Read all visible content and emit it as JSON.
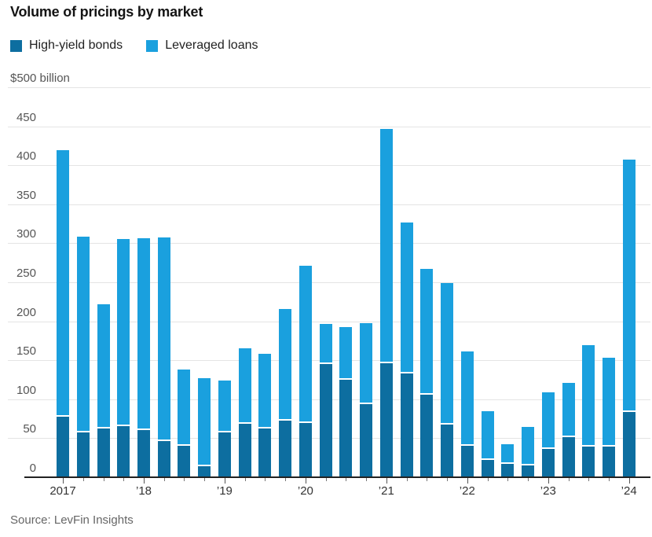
{
  "header": {
    "title": "Volume of pricings by market"
  },
  "footer": {
    "source": "Source: LevFin Insights"
  },
  "chart_data": {
    "type": "bar",
    "stacked": true,
    "title": "Volume of pricings by market",
    "xlabel": "",
    "ylabel": "",
    "y_top_label": "$500 billion",
    "ylim": [
      0,
      500
    ],
    "ytick_step": 50,
    "yticks": [
      0,
      50,
      100,
      150,
      200,
      250,
      300,
      350,
      400,
      450
    ],
    "grid": true,
    "legend_position": "top-left",
    "categories": [
      "2017 Q1",
      "2017 Q2",
      "2017 Q3",
      "2017 Q4",
      "2018 Q1",
      "2018 Q2",
      "2018 Q3",
      "2018 Q4",
      "2019 Q1",
      "2019 Q2",
      "2019 Q3",
      "2019 Q4",
      "2020 Q1",
      "2020 Q2",
      "2020 Q3",
      "2020 Q4",
      "2021 Q1",
      "2021 Q2",
      "2021 Q3",
      "2021 Q4",
      "2022 Q1",
      "2022 Q2",
      "2022 Q3",
      "2022 Q4",
      "2023 Q1",
      "2023 Q2",
      "2023 Q3",
      "2023 Q4",
      "2024 Q1"
    ],
    "year_ticks": [
      {
        "index": 0,
        "label": "2017"
      },
      {
        "index": 4,
        "label": "’18"
      },
      {
        "index": 8,
        "label": "’19"
      },
      {
        "index": 12,
        "label": "’20"
      },
      {
        "index": 16,
        "label": "’21"
      },
      {
        "index": 20,
        "label": "’22"
      },
      {
        "index": 24,
        "label": "’23"
      },
      {
        "index": 28,
        "label": "’24"
      }
    ],
    "series": [
      {
        "name": "High-yield bonds",
        "color": "#0d6ea0",
        "values": [
          80,
          60,
          65,
          68,
          63,
          48,
          42,
          16,
          60,
          71,
          65,
          75,
          72,
          147,
          127,
          96,
          148,
          135,
          108,
          70,
          42,
          24,
          19,
          17,
          38,
          53,
          41,
          41,
          86
        ]
      },
      {
        "name": "Leveraged loans",
        "color": "#1aa0de",
        "values": [
          339,
          249,
          157,
          237,
          244,
          260,
          96,
          111,
          64,
          94,
          93,
          141,
          199,
          50,
          66,
          102,
          299,
          192,
          159,
          179,
          119,
          61,
          23,
          48,
          71,
          68,
          128,
          112,
          321
        ]
      }
    ],
    "totals": [
      419,
      309,
      222,
      305,
      307,
      308,
      138,
      127,
      124,
      165,
      158,
      216,
      271,
      197,
      193,
      198,
      447,
      327,
      267,
      249,
      161,
      85,
      42,
      65,
      109,
      121,
      169,
      153,
      407
    ],
    "colors": {
      "grid": "#e4e4e4",
      "axis": "#222222",
      "tick": "#777777",
      "y_label_text": "#555555",
      "x_label_text": "#333333"
    }
  }
}
